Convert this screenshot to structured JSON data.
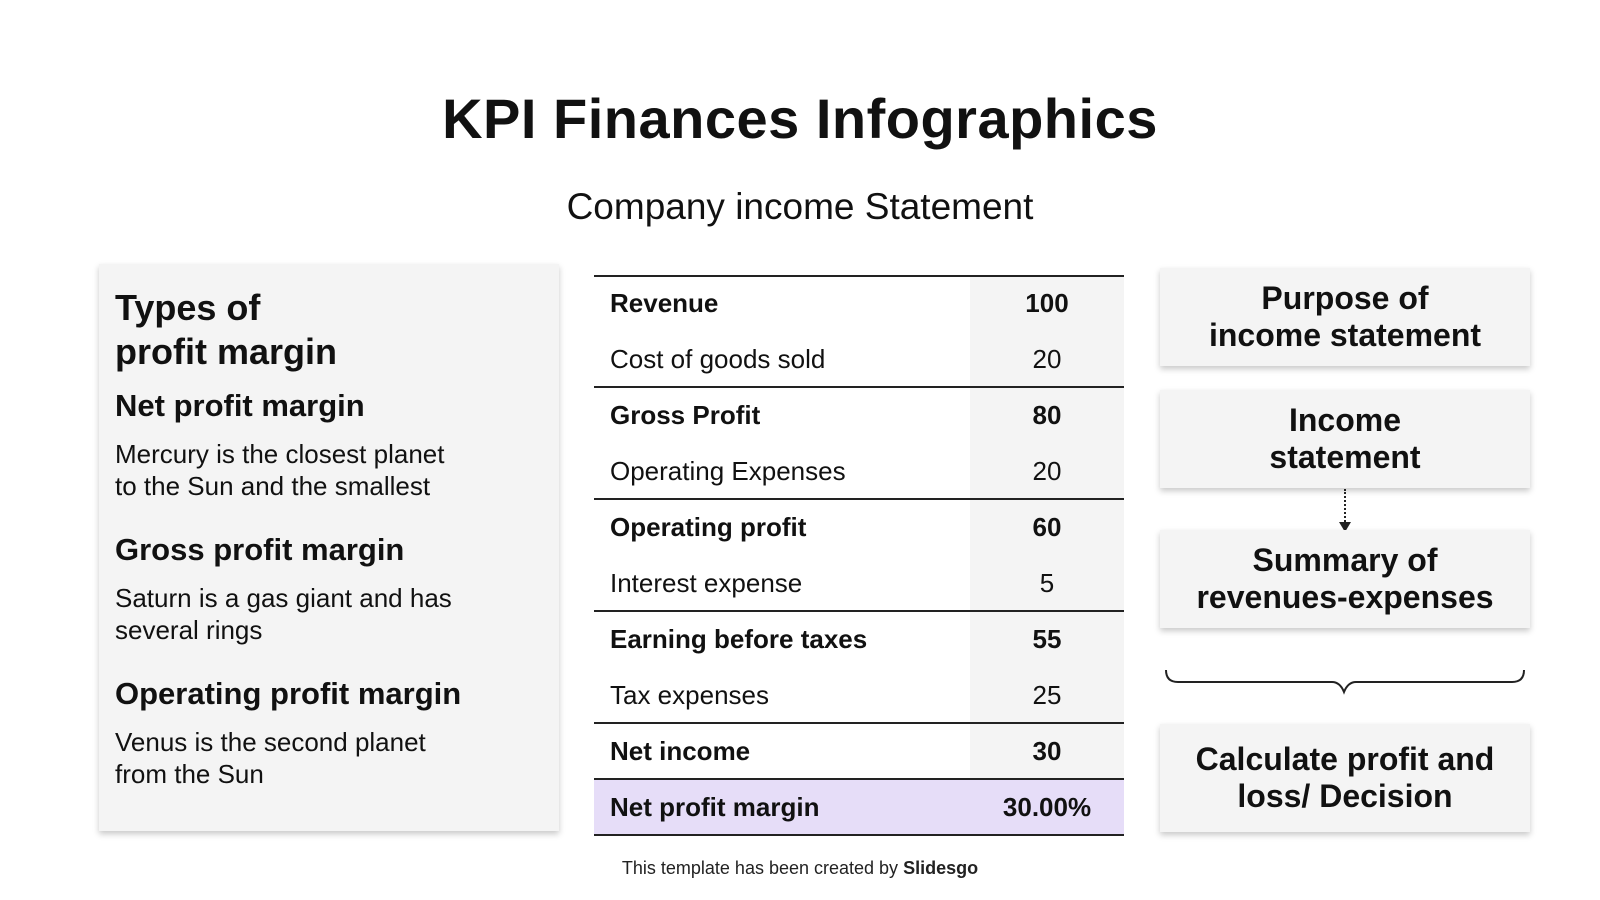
{
  "title": "KPI Finances Infographics",
  "subtitle": "Company income Statement",
  "left_panel": {
    "heading_line1": "Types of",
    "heading_line2": "profit margin",
    "items": [
      {
        "title": "Net profit margin",
        "desc_line1": "Mercury is the closest planet",
        "desc_line2": "to the Sun and the smallest"
      },
      {
        "title": "Gross profit margin",
        "desc_line1": "Saturn is a gas giant and has",
        "desc_line2": "several rings"
      },
      {
        "title": "Operating profit margin",
        "desc_line1": "Venus is the second planet",
        "desc_line2": "from the Sun"
      }
    ]
  },
  "table": {
    "rows": [
      {
        "label": "Revenue",
        "value": "100"
      },
      {
        "label": "Cost of goods sold",
        "value": "20"
      },
      {
        "label": "Gross Profit",
        "value": "80"
      },
      {
        "label": "Operating Expenses",
        "value": "20"
      },
      {
        "label": "Operating profit",
        "value": "60"
      },
      {
        "label": "Interest expense",
        "value": "5"
      },
      {
        "label": "Earning before taxes",
        "value": "55"
      },
      {
        "label": "Tax expenses",
        "value": "25"
      },
      {
        "label": "Net income",
        "value": "30"
      },
      {
        "label": "Net profit margin",
        "value": "30.00%"
      }
    ]
  },
  "right_panel": {
    "box1_line1": "Purpose of",
    "box1_line2": "income statement",
    "box2_line1": "Income",
    "box2_line2": "statement",
    "box3_line1": "Summary of",
    "box3_line2": "revenues-expenses",
    "box4_line1": "Calculate profit and",
    "box4_line2": "loss/ Decision"
  },
  "footer": {
    "prefix": "This template has been created by",
    "brand": "Slidesgo"
  },
  "colors": {
    "card_bg": "#f4f4f4",
    "highlight_row": "#e6ddf8",
    "text": "#111111"
  }
}
